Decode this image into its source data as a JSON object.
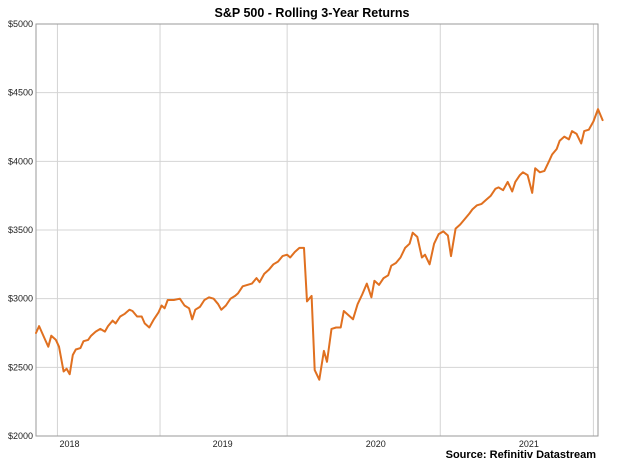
{
  "chart_data": {
    "type": "line",
    "title": "S&P 500 - Rolling 3-Year Returns",
    "source": "Source: Refinitiv Datastream",
    "xlabel": "",
    "ylabel": "",
    "ylim": [
      2000,
      5000
    ],
    "xlim": [
      2017.86,
      2021.53
    ],
    "y_ticks": [
      2000,
      2500,
      3000,
      3500,
      4000,
      4500,
      5000
    ],
    "y_tick_labels": [
      "$2000",
      "$2500",
      "$3000",
      "$3500",
      "$4000",
      "$4500",
      "$5000"
    ],
    "x_tick_labels": [
      {
        "label": "2018",
        "x": 2018.0
      },
      {
        "label": "2019",
        "x": 2019.0
      },
      {
        "label": "2020",
        "x": 2020.0
      },
      {
        "label": "2021",
        "x": 2021.0
      }
    ],
    "x_gridlines": [
      2018.0,
      2018.67,
      2019.5,
      2020.5,
      2021.5
    ],
    "grid": true,
    "line_color": "#E07020",
    "series": [
      {
        "values": [
          [
            2017.86,
            2750
          ],
          [
            2017.88,
            2800
          ],
          [
            2017.92,
            2700
          ],
          [
            2017.94,
            2650
          ],
          [
            2017.96,
            2730
          ],
          [
            2017.99,
            2700
          ],
          [
            2018.01,
            2650
          ],
          [
            2018.04,
            2470
          ],
          [
            2018.06,
            2490
          ],
          [
            2018.08,
            2450
          ],
          [
            2018.1,
            2590
          ],
          [
            2018.12,
            2630
          ],
          [
            2018.15,
            2640
          ],
          [
            2018.17,
            2690
          ],
          [
            2018.2,
            2700
          ],
          [
            2018.22,
            2730
          ],
          [
            2018.25,
            2760
          ],
          [
            2018.28,
            2780
          ],
          [
            2018.31,
            2760
          ],
          [
            2018.33,
            2800
          ],
          [
            2018.36,
            2840
          ],
          [
            2018.38,
            2820
          ],
          [
            2018.41,
            2870
          ],
          [
            2018.44,
            2890
          ],
          [
            2018.47,
            2920
          ],
          [
            2018.49,
            2910
          ],
          [
            2018.52,
            2870
          ],
          [
            2018.55,
            2870
          ],
          [
            2018.57,
            2820
          ],
          [
            2018.6,
            2790
          ],
          [
            2018.63,
            2850
          ],
          [
            2018.66,
            2900
          ],
          [
            2018.68,
            2950
          ],
          [
            2018.7,
            2930
          ],
          [
            2018.72,
            2990
          ],
          [
            2018.76,
            2990
          ],
          [
            2018.8,
            3000
          ],
          [
            2018.83,
            2950
          ],
          [
            2018.86,
            2930
          ],
          [
            2018.88,
            2850
          ],
          [
            2018.9,
            2920
          ],
          [
            2018.93,
            2940
          ],
          [
            2018.96,
            2990
          ],
          [
            2018.99,
            3010
          ],
          [
            2019.02,
            3000
          ],
          [
            2019.05,
            2960
          ],
          [
            2019.07,
            2920
          ],
          [
            2019.1,
            2950
          ],
          [
            2019.13,
            3000
          ],
          [
            2019.16,
            3020
          ],
          [
            2019.18,
            3040
          ],
          [
            2019.21,
            3090
          ],
          [
            2019.24,
            3100
          ],
          [
            2019.27,
            3110
          ],
          [
            2019.3,
            3150
          ],
          [
            2019.32,
            3120
          ],
          [
            2019.35,
            3180
          ],
          [
            2019.38,
            3210
          ],
          [
            2019.41,
            3250
          ],
          [
            2019.44,
            3270
          ],
          [
            2019.47,
            3310
          ],
          [
            2019.5,
            3320
          ],
          [
            2019.52,
            3300
          ],
          [
            2019.55,
            3340
          ],
          [
            2019.58,
            3370
          ],
          [
            2019.61,
            3370
          ],
          [
            2019.63,
            2980
          ],
          [
            2019.66,
            3020
          ],
          [
            2019.68,
            2480
          ],
          [
            2019.71,
            2410
          ],
          [
            2019.74,
            2620
          ],
          [
            2019.76,
            2540
          ],
          [
            2019.79,
            2780
          ],
          [
            2019.82,
            2790
          ],
          [
            2019.85,
            2790
          ],
          [
            2019.87,
            2910
          ],
          [
            2019.9,
            2880
          ],
          [
            2019.93,
            2850
          ],
          [
            2019.96,
            2960
          ],
          [
            2019.99,
            3030
          ],
          [
            2020.02,
            3110
          ],
          [
            2020.05,
            3010
          ],
          [
            2020.07,
            3130
          ],
          [
            2020.1,
            3100
          ],
          [
            2020.13,
            3150
          ],
          [
            2020.16,
            3170
          ],
          [
            2020.18,
            3240
          ],
          [
            2020.21,
            3260
          ],
          [
            2020.24,
            3300
          ],
          [
            2020.27,
            3370
          ],
          [
            2020.3,
            3400
          ],
          [
            2020.32,
            3480
          ],
          [
            2020.35,
            3450
          ],
          [
            2020.38,
            3300
          ],
          [
            2020.4,
            3320
          ],
          [
            2020.43,
            3250
          ],
          [
            2020.46,
            3400
          ],
          [
            2020.49,
            3470
          ],
          [
            2020.52,
            3490
          ],
          [
            2020.55,
            3460
          ],
          [
            2020.57,
            3310
          ],
          [
            2020.6,
            3510
          ],
          [
            2020.63,
            3540
          ],
          [
            2020.66,
            3580
          ],
          [
            2020.69,
            3620
          ],
          [
            2020.71,
            3650
          ],
          [
            2020.74,
            3680
          ],
          [
            2020.77,
            3690
          ],
          [
            2020.8,
            3720
          ],
          [
            2020.83,
            3750
          ],
          [
            2020.86,
            3800
          ],
          [
            2020.88,
            3810
          ],
          [
            2020.91,
            3790
          ],
          [
            2020.94,
            3850
          ],
          [
            2020.97,
            3780
          ],
          [
            2020.99,
            3850
          ],
          [
            2021.02,
            3900
          ],
          [
            2021.04,
            3920
          ],
          [
            2021.07,
            3900
          ],
          [
            2021.1,
            3770
          ],
          [
            2021.12,
            3950
          ],
          [
            2021.15,
            3920
          ],
          [
            2021.18,
            3930
          ],
          [
            2021.21,
            4000
          ],
          [
            2021.23,
            4050
          ],
          [
            2021.26,
            4090
          ],
          [
            2021.28,
            4150
          ],
          [
            2021.31,
            4180
          ],
          [
            2021.34,
            4160
          ],
          [
            2021.36,
            4220
          ],
          [
            2021.39,
            4200
          ],
          [
            2021.42,
            4130
          ],
          [
            2021.44,
            4220
          ],
          [
            2021.47,
            4230
          ],
          [
            2021.5,
            4290
          ],
          [
            2021.53,
            4380
          ],
          [
            2021.56,
            4300
          ]
        ]
      }
    ]
  }
}
